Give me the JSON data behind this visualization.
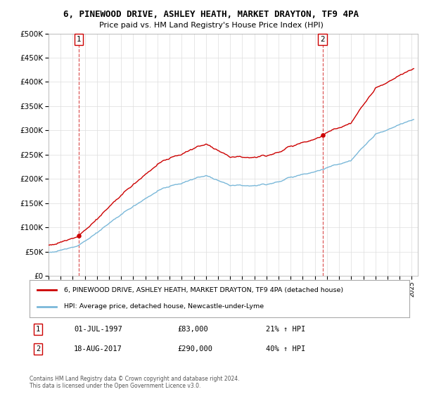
{
  "title": "6, PINEWOOD DRIVE, ASHLEY HEATH, MARKET DRAYTON, TF9 4PA",
  "subtitle": "Price paid vs. HM Land Registry's House Price Index (HPI)",
  "hpi_label": "HPI: Average price, detached house, Newcastle-under-Lyme",
  "property_label": "6, PINEWOOD DRIVE, ASHLEY HEATH, MARKET DRAYTON, TF9 4PA (detached house)",
  "sale1_date": "01-JUL-1997",
  "sale1_price": 83000,
  "sale1_hpi": "21% ↑ HPI",
  "sale2_date": "18-AUG-2017",
  "sale2_price": 290000,
  "sale2_hpi": "40% ↑ HPI",
  "copyright": "Contains HM Land Registry data © Crown copyright and database right 2024.\nThis data is licensed under the Open Government Licence v3.0.",
  "hpi_color": "#7ab8d9",
  "property_color": "#cc0000",
  "vline_color": "#cc0000",
  "sale1_x": 1997.5,
  "sale2_x": 2017.63,
  "ylim_min": 0,
  "ylim_max": 500000,
  "xlim_min": 1995.0,
  "xlim_max": 2025.5,
  "background_color": "#ffffff",
  "grid_color": "#dddddd"
}
